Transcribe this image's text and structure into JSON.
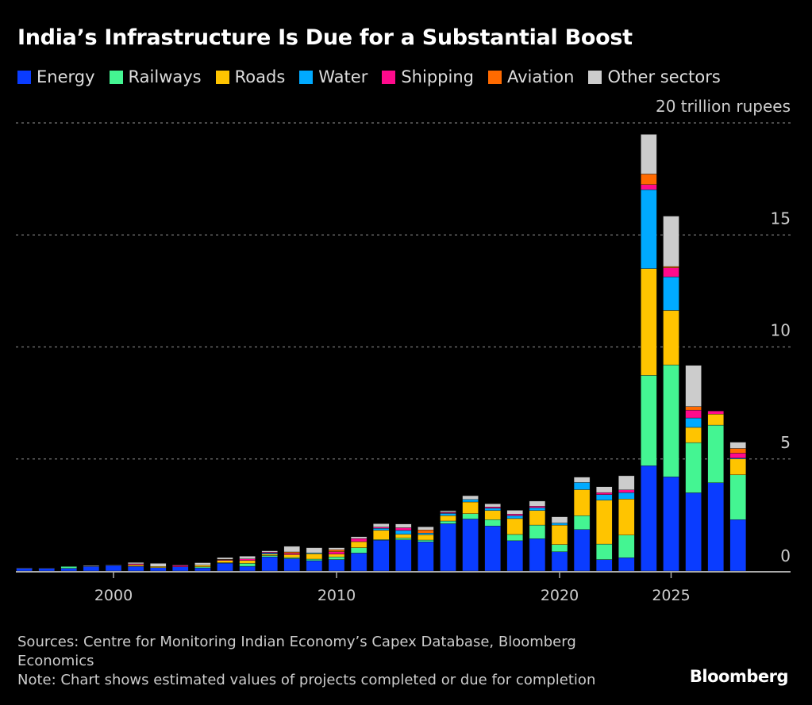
{
  "chart_data": {
    "type": "bar",
    "stacked": true,
    "title": "India’s Infrastructure Is Due for a Substantial Boost",
    "unit_label": "20 trillion rupees",
    "ylim": [
      0,
      20
    ],
    "yticks": [
      0,
      5,
      10,
      15,
      20
    ],
    "ytick_labels": [
      "0",
      "5",
      "10",
      "15",
      "20 trillion rupees"
    ],
    "xticks": [
      2000,
      2010,
      2020,
      2025
    ],
    "xtick_labels": [
      "2000",
      "2010",
      "2020",
      "2025"
    ],
    "grid": true,
    "legend_position": "top-left",
    "categories": [
      1996,
      1997,
      1998,
      1999,
      2000,
      2001,
      2002,
      2003,
      2004,
      2005,
      2006,
      2007,
      2008,
      2009,
      2010,
      2011,
      2012,
      2013,
      2014,
      2015,
      2016,
      2017,
      2018,
      2019,
      2020,
      2021,
      2022,
      2023,
      2024,
      2025,
      2026,
      2027,
      2028
    ],
    "series": [
      {
        "name": "Energy",
        "color": "#0a3cff",
        "values": [
          0.12,
          0.12,
          0.12,
          0.2,
          0.25,
          0.21,
          0.15,
          0.19,
          0.14,
          0.35,
          0.21,
          0.63,
          0.55,
          0.46,
          0.51,
          0.8,
          1.37,
          1.39,
          1.3,
          2.11,
          2.32,
          2.01,
          1.35,
          1.44,
          0.86,
          1.85,
          0.51,
          0.59,
          4.7,
          4.2,
          3.49,
          3.94,
          2.29
        ]
      },
      {
        "name": "Railways",
        "color": "#44f592",
        "values": [
          0,
          0,
          0.08,
          0,
          0,
          0,
          0,
          0,
          0.05,
          0.02,
          0.13,
          0.06,
          0.05,
          0.07,
          0.12,
          0.24,
          0.03,
          0.08,
          0.08,
          0.12,
          0.24,
          0.28,
          0.28,
          0.61,
          0.32,
          0.62,
          0.69,
          1.01,
          4.03,
          5.0,
          2.24,
          2.57,
          2.0
        ]
      },
      {
        "name": "Roads",
        "color": "#ffc400",
        "values": [
          0,
          0,
          0,
          0,
          0,
          0.06,
          0.05,
          0,
          0.07,
          0.1,
          0.13,
          0.06,
          0.13,
          0.24,
          0.12,
          0.27,
          0.42,
          0.17,
          0.24,
          0.24,
          0.52,
          0.41,
          0.71,
          0.65,
          0.87,
          1.16,
          1.96,
          1.61,
          4.77,
          2.43,
          0.68,
          0.49,
          0.71
        ]
      },
      {
        "name": "Water",
        "color": "#00aaff",
        "values": [
          0,
          0,
          0,
          0,
          0,
          0,
          0,
          0,
          0,
          0,
          0,
          0.05,
          0,
          0.04,
          0,
          0,
          0.08,
          0.17,
          0.07,
          0.1,
          0.11,
          0.1,
          0.13,
          0.12,
          0.09,
          0.32,
          0.25,
          0.29,
          3.52,
          1.5,
          0.42,
          0,
          0.04
        ]
      },
      {
        "name": "Shipping",
        "color": "#ff0a8c",
        "values": [
          0,
          0,
          0,
          0,
          0,
          0.05,
          0,
          0.06,
          0,
          0.03,
          0.07,
          0.04,
          0.06,
          0,
          0.11,
          0.14,
          0.06,
          0.12,
          0,
          0.04,
          0,
          0.06,
          0.07,
          0.07,
          0,
          0,
          0.09,
          0.12,
          0.23,
          0.4,
          0.35,
          0.14,
          0.22
        ]
      },
      {
        "name": "Aviation",
        "color": "#ff6a00",
        "values": [
          0,
          0,
          0,
          0,
          0,
          0,
          0,
          0,
          0,
          0.02,
          0,
          0,
          0.06,
          0,
          0.09,
          0,
          0,
          0,
          0.14,
          0.02,
          0,
          0,
          0,
          0,
          0,
          0,
          0,
          0,
          0.47,
          0.06,
          0.16,
          0,
          0.21
        ]
      },
      {
        "name": "Other sectors",
        "color": "#cccccc",
        "values": [
          0.02,
          0.01,
          0,
          0.04,
          0.02,
          0.06,
          0.14,
          0.02,
          0.11,
          0.08,
          0.12,
          0.06,
          0.25,
          0.23,
          0.09,
          0.08,
          0.15,
          0.17,
          0.14,
          0.06,
          0.17,
          0.14,
          0.17,
          0.23,
          0.28,
          0.24,
          0.26,
          0.63,
          1.77,
          2.25,
          1.84,
          0,
          0.28
        ]
      }
    ]
  },
  "footer": {
    "sources": "Sources: Centre for Monitoring Indian Economy’s Capex Database, Bloomberg Economics",
    "note": "Note: Chart shows estimated values of projects completed or due for completion"
  },
  "brand": "Bloomberg"
}
